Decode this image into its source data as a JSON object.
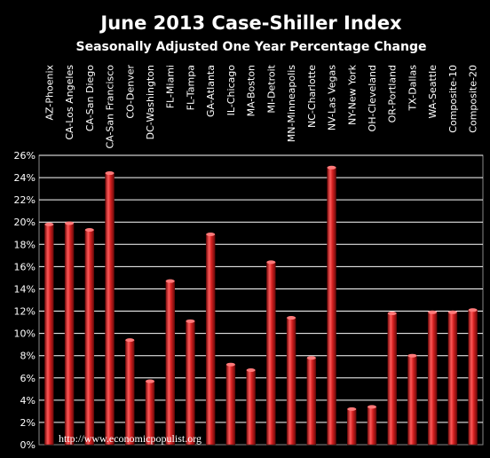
{
  "chart_data": {
    "type": "bar",
    "title": "June 2013 Case-Shiller Index",
    "subtitle": "Seasonally Adjusted One Year Percentage Change",
    "watermark": "http://www.economicpopulist.org",
    "categories": [
      "AZ-Phoenix",
      "CA-Los Angeles",
      "CA-San Diego",
      "CA-San Francisco",
      "CO-Denver",
      "DC-Washington",
      "FL-Miami",
      "FL-Tampa",
      "GA-Atlanta",
      "IL-Chicago",
      "MA-Boston",
      "MI-Detroit",
      "MN-Minneapolis",
      "NC-Charlotte",
      "NV-Las Vegas",
      "NY-New York",
      "OH-Cleveland",
      "OR-Portland",
      "TX-Dallas",
      "WA-Seattle",
      "Composite-10",
      "Composite-20"
    ],
    "values": [
      19.8,
      19.9,
      19.3,
      24.4,
      9.4,
      5.7,
      14.7,
      11.1,
      18.9,
      7.2,
      6.7,
      16.4,
      11.4,
      7.8,
      24.9,
      3.2,
      3.4,
      11.8,
      8.0,
      11.9,
      11.9,
      12.1
    ],
    "ylim": [
      0,
      26
    ],
    "yticks": [
      "0%",
      "2%",
      "4%",
      "6%",
      "8%",
      "10%",
      "12%",
      "14%",
      "16%",
      "18%",
      "20%",
      "22%",
      "24%",
      "26%"
    ],
    "grid": true,
    "colors": {
      "bar": "#cc2222",
      "background": "#000000",
      "plot_border": "#888888",
      "grid": "#ffffff",
      "text": "#ffffff"
    }
  }
}
